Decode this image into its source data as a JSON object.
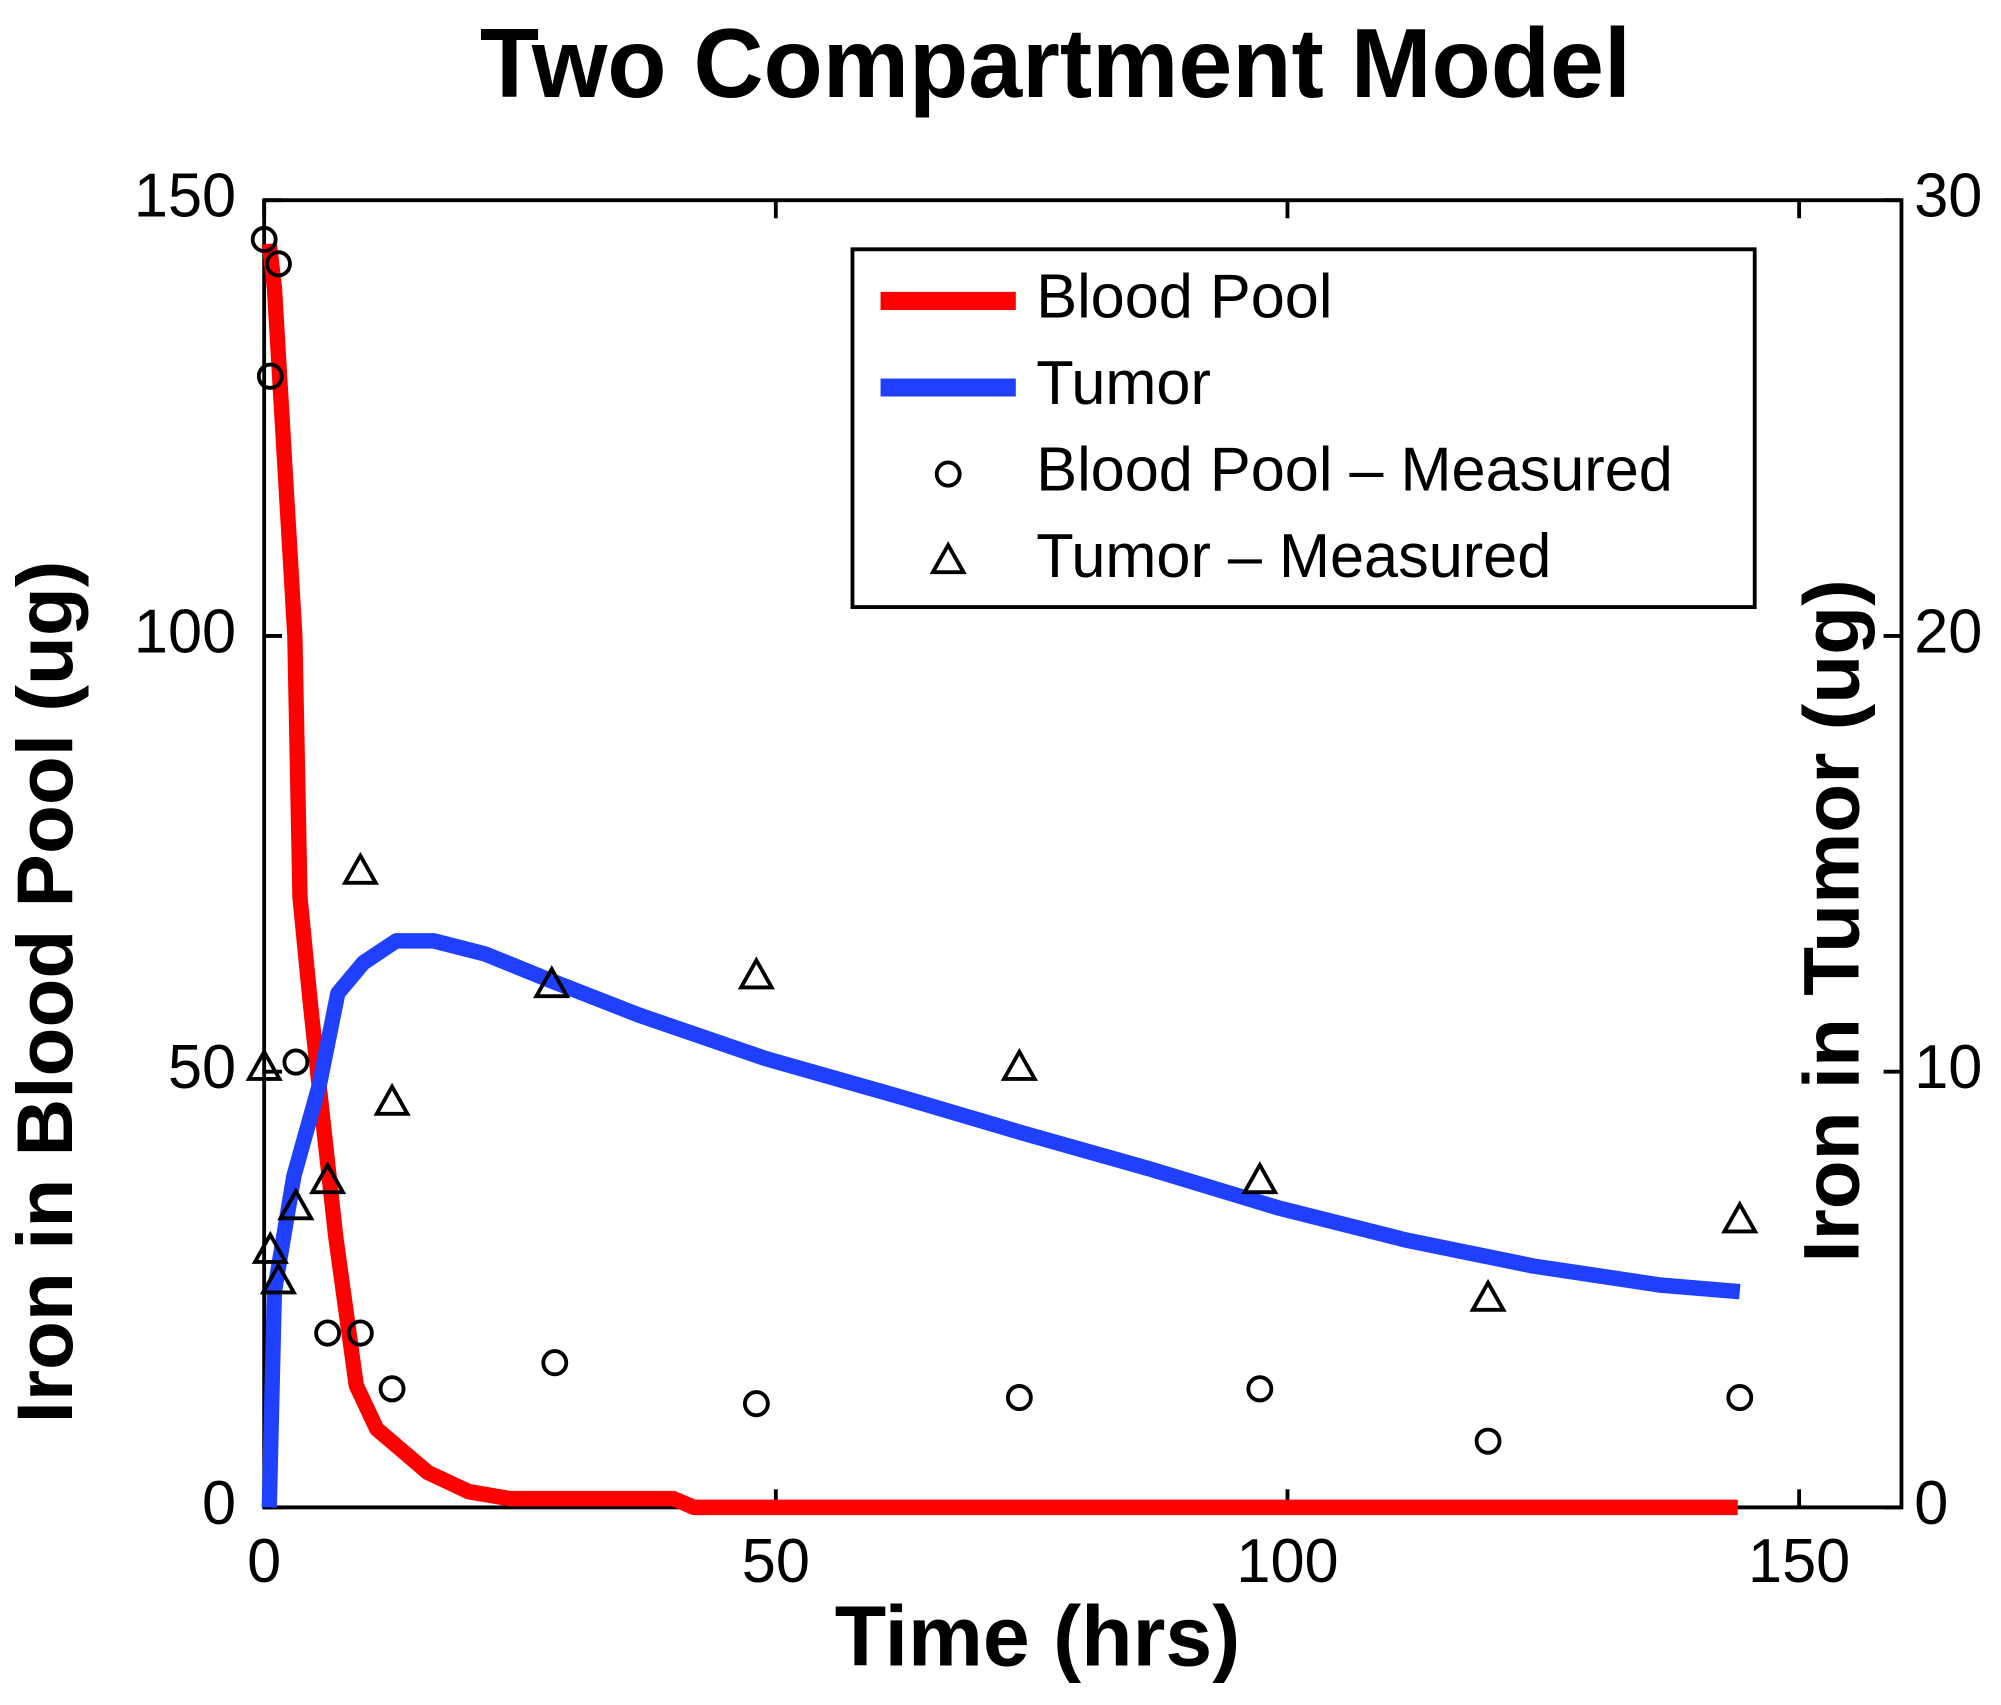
{
  "chart_data": {
    "type": "line",
    "title": "Two Compartment Model",
    "x_label": "Time (hrs)",
    "y_label": "Iron in Blood Pool (ug)",
    "y2_label": "Iron in Tumor (ug)",
    "xlim": [
      0,
      160
    ],
    "xticks": [
      0,
      50,
      100,
      150
    ],
    "ylim": [
      0,
      150
    ],
    "yticks": [
      0,
      50,
      100,
      150
    ],
    "y2lim": [
      0,
      30
    ],
    "y2ticks": [
      0,
      10,
      20,
      30
    ],
    "legend": "upper right",
    "series": [
      {
        "name": "Blood Pool",
        "color": "#ff0000",
        "style": "line",
        "x": [
          0.5,
          1,
          2,
          3,
          3.5,
          4.5,
          5.5,
          7,
          9,
          11,
          13,
          16,
          20,
          24,
          30,
          40,
          42,
          60,
          80,
          100,
          120,
          144
        ],
        "values": [
          145,
          140,
          120,
          100,
          70,
          58,
          47,
          31,
          14,
          9,
          7,
          4,
          1.8,
          1,
          1,
          1,
          0,
          0,
          0,
          0,
          0,
          0
        ]
      },
      {
        "name": "Tumor",
        "color": "#2040ff",
        "style": "line",
        "axis": "y2",
        "x": [
          0.5,
          1,
          2.9,
          5.4,
          7.2,
          9.7,
          12.9,
          16.6,
          21.6,
          27.9,
          36.6,
          49,
          61.6,
          74,
          86.5,
          99,
          111.5,
          124,
          136.5,
          144.2
        ],
        "values": [
          0,
          4.95,
          7.6,
          9.7,
          11.8,
          12.5,
          13.0,
          13.0,
          12.7,
          12.1,
          11.3,
          10.3,
          9.46,
          8.6,
          7.77,
          6.88,
          6.14,
          5.54,
          5.1,
          4.95
        ]
      },
      {
        "name": "Blood Pool – Measured",
        "color": "#000000",
        "style": "circle",
        "x": [
          0,
          1.4,
          0.6,
          3.1,
          6.2,
          9.4,
          12.5,
          28.4,
          48.1,
          73.8,
          97.3,
          119.6,
          144.2
        ],
        "values": [
          145.5,
          142.7,
          129.8,
          51.1,
          20,
          20,
          13.6,
          16.6,
          11.9,
          12.6,
          13.6,
          7.6,
          12.6
        ]
      },
      {
        "name": "Tumor – Measured",
        "color": "#000000",
        "style": "triangle",
        "axis": "y2",
        "x": [
          0,
          0.6,
          1.4,
          3.1,
          6.2,
          9.4,
          12.5,
          28.1,
          48.1,
          73.8,
          97.3,
          119.6,
          144.2
        ],
        "values": [
          10.1,
          5.9,
          5.2,
          6.9,
          7.5,
          14.6,
          9.3,
          12.0,
          12.2,
          10.1,
          7.5,
          4.8,
          6.6
        ]
      }
    ]
  }
}
